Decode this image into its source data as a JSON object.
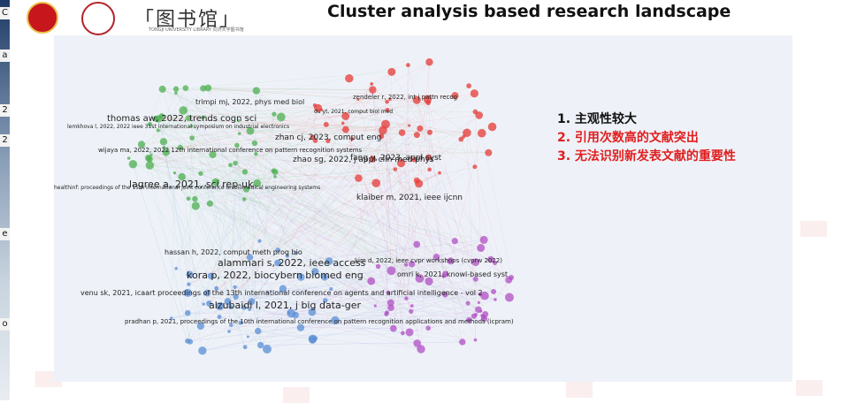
{
  "slide": {
    "title": "Cluster analysis based research landscape",
    "logo_text": "「图书馆」",
    "logo_sub": "TONGJI UNIVERSITY LIBRARY 同济大学图书馆"
  },
  "left_strip": [
    "C",
    "a",
    "2",
    "2",
    "e",
    "o"
  ],
  "network": {
    "clusters": [
      {
        "name": "green",
        "color": "#4caf50"
      },
      {
        "name": "red",
        "color": "#e53935"
      },
      {
        "name": "blue",
        "color": "#5b8fd6"
      },
      {
        "name": "purple",
        "color": "#b04fc4"
      }
    ],
    "labels": [
      "thomas aw, 2022, trends cogn sci",
      "trimpi mj, 2022, phys med biol",
      "lemkhova l, 2022, 2022 ieee 31st international symposium on industrial electronics",
      "wijaya ma, 2022, 2022 12th international conference on pattern recognition systems",
      "lagree a, 2021, sci rep-uk",
      "healthinf: proceedings of the 15th international joint conference on biomedical engineering systems",
      "zhan cj, 2023, comput eng",
      "fang y, 2023, appl syst",
      "zhao sg, 2022, j appl clin med phys",
      "klaiber m, 2021, ieee ijcnn",
      "zendeler r, 2022, int j pattn recog",
      "du yt, 2021, comput biol med",
      "hassan h, 2022, comput meth prog bio",
      "alammari s, 2022, ieee access",
      "kora p, 2022, biocybern biomed eng",
      "venu sk, 2021, icaart proceedings of the 13th international conference on agents and artificial intelligence - vol 2",
      "alzubaidi l, 2021, j big data-ger",
      "pradhan p, 2021, proceedings of the 10th international conference on pattern recognition applications and methods (icpram)",
      "kim d, 2022, ieee cvpr workshops (cvprw 2022)",
      "omri k, 2021, knowl-based syst"
    ]
  },
  "bullets": [
    {
      "text": "1. 主观性较大",
      "color": "#111111"
    },
    {
      "text": "2. 引用次数高的文献突出",
      "color": "#e11e1e"
    },
    {
      "text": "3.  无法识别新发表文献的重要性",
      "color": "#e11e1e"
    }
  ]
}
